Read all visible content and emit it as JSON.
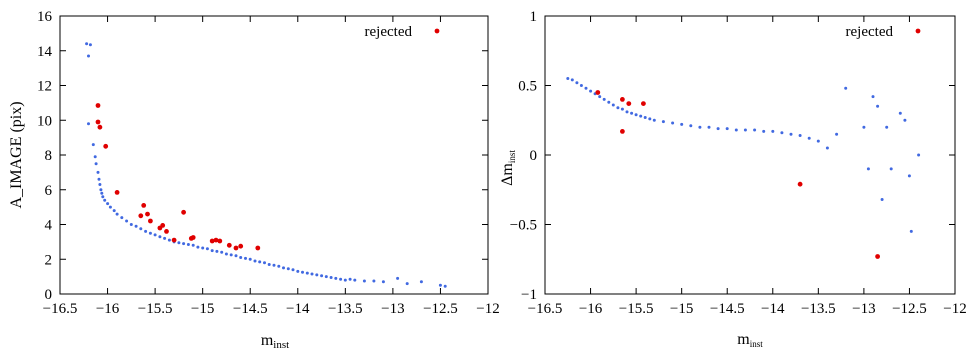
{
  "colors": {
    "accepted": "#4169e1",
    "rejected": "#e00000",
    "axis": "#000000"
  },
  "chart_data": [
    {
      "type": "scatter",
      "title": "",
      "xlabel": "m_inst",
      "xlabel_main": "m",
      "xlabel_sub": "inst",
      "ylabel": "A_IMAGE (pix)",
      "xlim": [
        -16.5,
        -12
      ],
      "ylim": [
        0,
        16
      ],
      "xticks": [
        -16.5,
        -16,
        -15.5,
        -15,
        -14.5,
        -14,
        -13.5,
        -13,
        -12.5,
        -12
      ],
      "xtick_labels": [
        "−16.5",
        "−16",
        "−15.5",
        "−15",
        "−14.5",
        "−14",
        "−13.5",
        "−13",
        "−12.5",
        "−12"
      ],
      "yticks": [
        0,
        2,
        4,
        6,
        8,
        10,
        12,
        14,
        16
      ],
      "ytick_labels": [
        "0",
        "2",
        "4",
        "6",
        "8",
        "10",
        "12",
        "14",
        "16"
      ],
      "legend": {
        "label": "rejected",
        "position": "top-right"
      },
      "series": [
        {
          "name": "",
          "color": "#4169e1",
          "points": [
            [
              -16.22,
              14.4
            ],
            [
              -16.18,
              14.35
            ],
            [
              -16.2,
              13.7
            ],
            [
              -16.2,
              9.8
            ],
            [
              -16.15,
              8.6
            ],
            [
              -16.13,
              7.9
            ],
            [
              -16.12,
              7.5
            ],
            [
              -16.1,
              7.0
            ],
            [
              -16.09,
              6.6
            ],
            [
              -16.08,
              6.3
            ],
            [
              -16.07,
              6.0
            ],
            [
              -16.06,
              5.8
            ],
            [
              -16.05,
              5.6
            ],
            [
              -16.03,
              5.4
            ],
            [
              -16.0,
              5.2
            ],
            [
              -15.97,
              5.0
            ],
            [
              -15.93,
              4.8
            ],
            [
              -15.9,
              4.6
            ],
            [
              -15.85,
              4.4
            ],
            [
              -15.8,
              4.2
            ],
            [
              -15.75,
              4.0
            ],
            [
              -15.7,
              3.9
            ],
            [
              -15.65,
              3.75
            ],
            [
              -15.6,
              3.6
            ],
            [
              -15.55,
              3.5
            ],
            [
              -15.5,
              3.4
            ],
            [
              -15.45,
              3.3
            ],
            [
              -15.4,
              3.2
            ],
            [
              -15.35,
              3.1
            ],
            [
              -15.3,
              3.0
            ],
            [
              -15.25,
              2.95
            ],
            [
              -15.2,
              2.9
            ],
            [
              -15.15,
              2.85
            ],
            [
              -15.1,
              2.8
            ],
            [
              -15.05,
              2.7
            ],
            [
              -15.0,
              2.65
            ],
            [
              -14.95,
              2.6
            ],
            [
              -14.9,
              2.5
            ],
            [
              -14.85,
              2.45
            ],
            [
              -14.8,
              2.4
            ],
            [
              -14.75,
              2.3
            ],
            [
              -14.7,
              2.25
            ],
            [
              -14.65,
              2.2
            ],
            [
              -14.6,
              2.1
            ],
            [
              -14.55,
              2.05
            ],
            [
              -14.5,
              2.0
            ],
            [
              -14.45,
              1.9
            ],
            [
              -14.4,
              1.85
            ],
            [
              -14.35,
              1.8
            ],
            [
              -14.3,
              1.7
            ],
            [
              -14.25,
              1.65
            ],
            [
              -14.2,
              1.6
            ],
            [
              -14.15,
              1.5
            ],
            [
              -14.1,
              1.45
            ],
            [
              -14.05,
              1.4
            ],
            [
              -14.0,
              1.3
            ],
            [
              -13.95,
              1.25
            ],
            [
              -13.9,
              1.2
            ],
            [
              -13.85,
              1.15
            ],
            [
              -13.8,
              1.1
            ],
            [
              -13.75,
              1.05
            ],
            [
              -13.7,
              1.0
            ],
            [
              -13.65,
              0.95
            ],
            [
              -13.6,
              0.9
            ],
            [
              -13.55,
              0.85
            ],
            [
              -13.5,
              0.8
            ],
            [
              -13.45,
              0.85
            ],
            [
              -13.4,
              0.8
            ],
            [
              -13.3,
              0.75
            ],
            [
              -13.2,
              0.75
            ],
            [
              -13.1,
              0.7
            ],
            [
              -12.95,
              0.9
            ],
            [
              -12.85,
              0.6
            ],
            [
              -12.7,
              0.7
            ],
            [
              -12.5,
              0.5
            ],
            [
              -12.45,
              0.45
            ]
          ]
        },
        {
          "name": "rejected",
          "color": "#e00000",
          "points": [
            [
              -16.1,
              10.85
            ],
            [
              -16.1,
              9.9
            ],
            [
              -16.08,
              9.6
            ],
            [
              -16.02,
              8.5
            ],
            [
              -15.9,
              5.85
            ],
            [
              -15.62,
              5.1
            ],
            [
              -15.58,
              4.6
            ],
            [
              -15.55,
              4.2
            ],
            [
              -15.65,
              4.5
            ],
            [
              -15.45,
              3.8
            ],
            [
              -15.42,
              3.95
            ],
            [
              -15.38,
              3.6
            ],
            [
              -15.3,
              3.1
            ],
            [
              -15.2,
              4.7
            ],
            [
              -15.12,
              3.2
            ],
            [
              -15.1,
              3.25
            ],
            [
              -14.9,
              3.05
            ],
            [
              -14.86,
              3.1
            ],
            [
              -14.82,
              3.05
            ],
            [
              -14.72,
              2.8
            ],
            [
              -14.65,
              2.65
            ],
            [
              -14.6,
              2.75
            ],
            [
              -14.42,
              2.65
            ]
          ]
        }
      ]
    },
    {
      "type": "scatter",
      "title": "",
      "xlabel": "m_inst",
      "xlabel_main": "m",
      "xlabel_sub": "inst",
      "ylabel": "Δm_inst",
      "ylabel_main": "Δm",
      "ylabel_sub": "inst",
      "xlim": [
        -16.5,
        -12
      ],
      "ylim": [
        -1,
        1
      ],
      "xticks": [
        -16.5,
        -16,
        -15.5,
        -15,
        -14.5,
        -14,
        -13.5,
        -13,
        -12.5,
        -12
      ],
      "xtick_labels": [
        "−16.5",
        "−16",
        "−15.5",
        "−15",
        "−14.5",
        "−14",
        "−13.5",
        "−13",
        "−12.5",
        "−12"
      ],
      "yticks": [
        -1,
        -0.5,
        0,
        0.5,
        1
      ],
      "ytick_labels": [
        "−1",
        "−0.5",
        "0",
        "0.5",
        "1"
      ],
      "legend": {
        "label": "rejected",
        "position": "top-right"
      },
      "series": [
        {
          "name": "",
          "color": "#4169e1",
          "points": [
            [
              -16.25,
              0.55
            ],
            [
              -16.2,
              0.54
            ],
            [
              -16.15,
              0.52
            ],
            [
              -16.1,
              0.5
            ],
            [
              -16.05,
              0.48
            ],
            [
              -16.0,
              0.46
            ],
            [
              -15.95,
              0.44
            ],
            [
              -15.9,
              0.42
            ],
            [
              -15.85,
              0.4
            ],
            [
              -15.8,
              0.38
            ],
            [
              -15.75,
              0.36
            ],
            [
              -15.7,
              0.34
            ],
            [
              -15.65,
              0.33
            ],
            [
              -15.6,
              0.31
            ],
            [
              -15.55,
              0.3
            ],
            [
              -15.5,
              0.29
            ],
            [
              -15.45,
              0.28
            ],
            [
              -15.4,
              0.27
            ],
            [
              -15.35,
              0.26
            ],
            [
              -15.3,
              0.25
            ],
            [
              -15.2,
              0.24
            ],
            [
              -15.1,
              0.23
            ],
            [
              -15.0,
              0.22
            ],
            [
              -14.9,
              0.21
            ],
            [
              -14.8,
              0.2
            ],
            [
              -14.7,
              0.2
            ],
            [
              -14.6,
              0.19
            ],
            [
              -14.5,
              0.19
            ],
            [
              -14.4,
              0.18
            ],
            [
              -14.3,
              0.18
            ],
            [
              -14.2,
              0.18
            ],
            [
              -14.1,
              0.17
            ],
            [
              -14.0,
              0.17
            ],
            [
              -13.9,
              0.16
            ],
            [
              -13.8,
              0.15
            ],
            [
              -13.7,
              0.14
            ],
            [
              -13.6,
              0.12
            ],
            [
              -13.5,
              0.1
            ],
            [
              -13.4,
              0.05
            ],
            [
              -13.3,
              0.15
            ],
            [
              -13.2,
              0.48
            ],
            [
              -13.0,
              0.2
            ],
            [
              -12.95,
              -0.1
            ],
            [
              -12.9,
              0.42
            ],
            [
              -12.85,
              0.35
            ],
            [
              -12.8,
              -0.32
            ],
            [
              -12.75,
              0.2
            ],
            [
              -12.7,
              -0.1
            ],
            [
              -12.6,
              0.3
            ],
            [
              -12.55,
              0.25
            ],
            [
              -12.5,
              -0.15
            ],
            [
              -12.48,
              -0.55
            ],
            [
              -12.4,
              0.0
            ]
          ]
        },
        {
          "name": "rejected",
          "color": "#e00000",
          "points": [
            [
              -15.92,
              0.45
            ],
            [
              -15.65,
              0.4
            ],
            [
              -15.58,
              0.37
            ],
            [
              -15.42,
              0.37
            ],
            [
              -15.65,
              0.17
            ],
            [
              -13.7,
              -0.21
            ],
            [
              -12.85,
              -0.73
            ]
          ]
        }
      ]
    }
  ]
}
